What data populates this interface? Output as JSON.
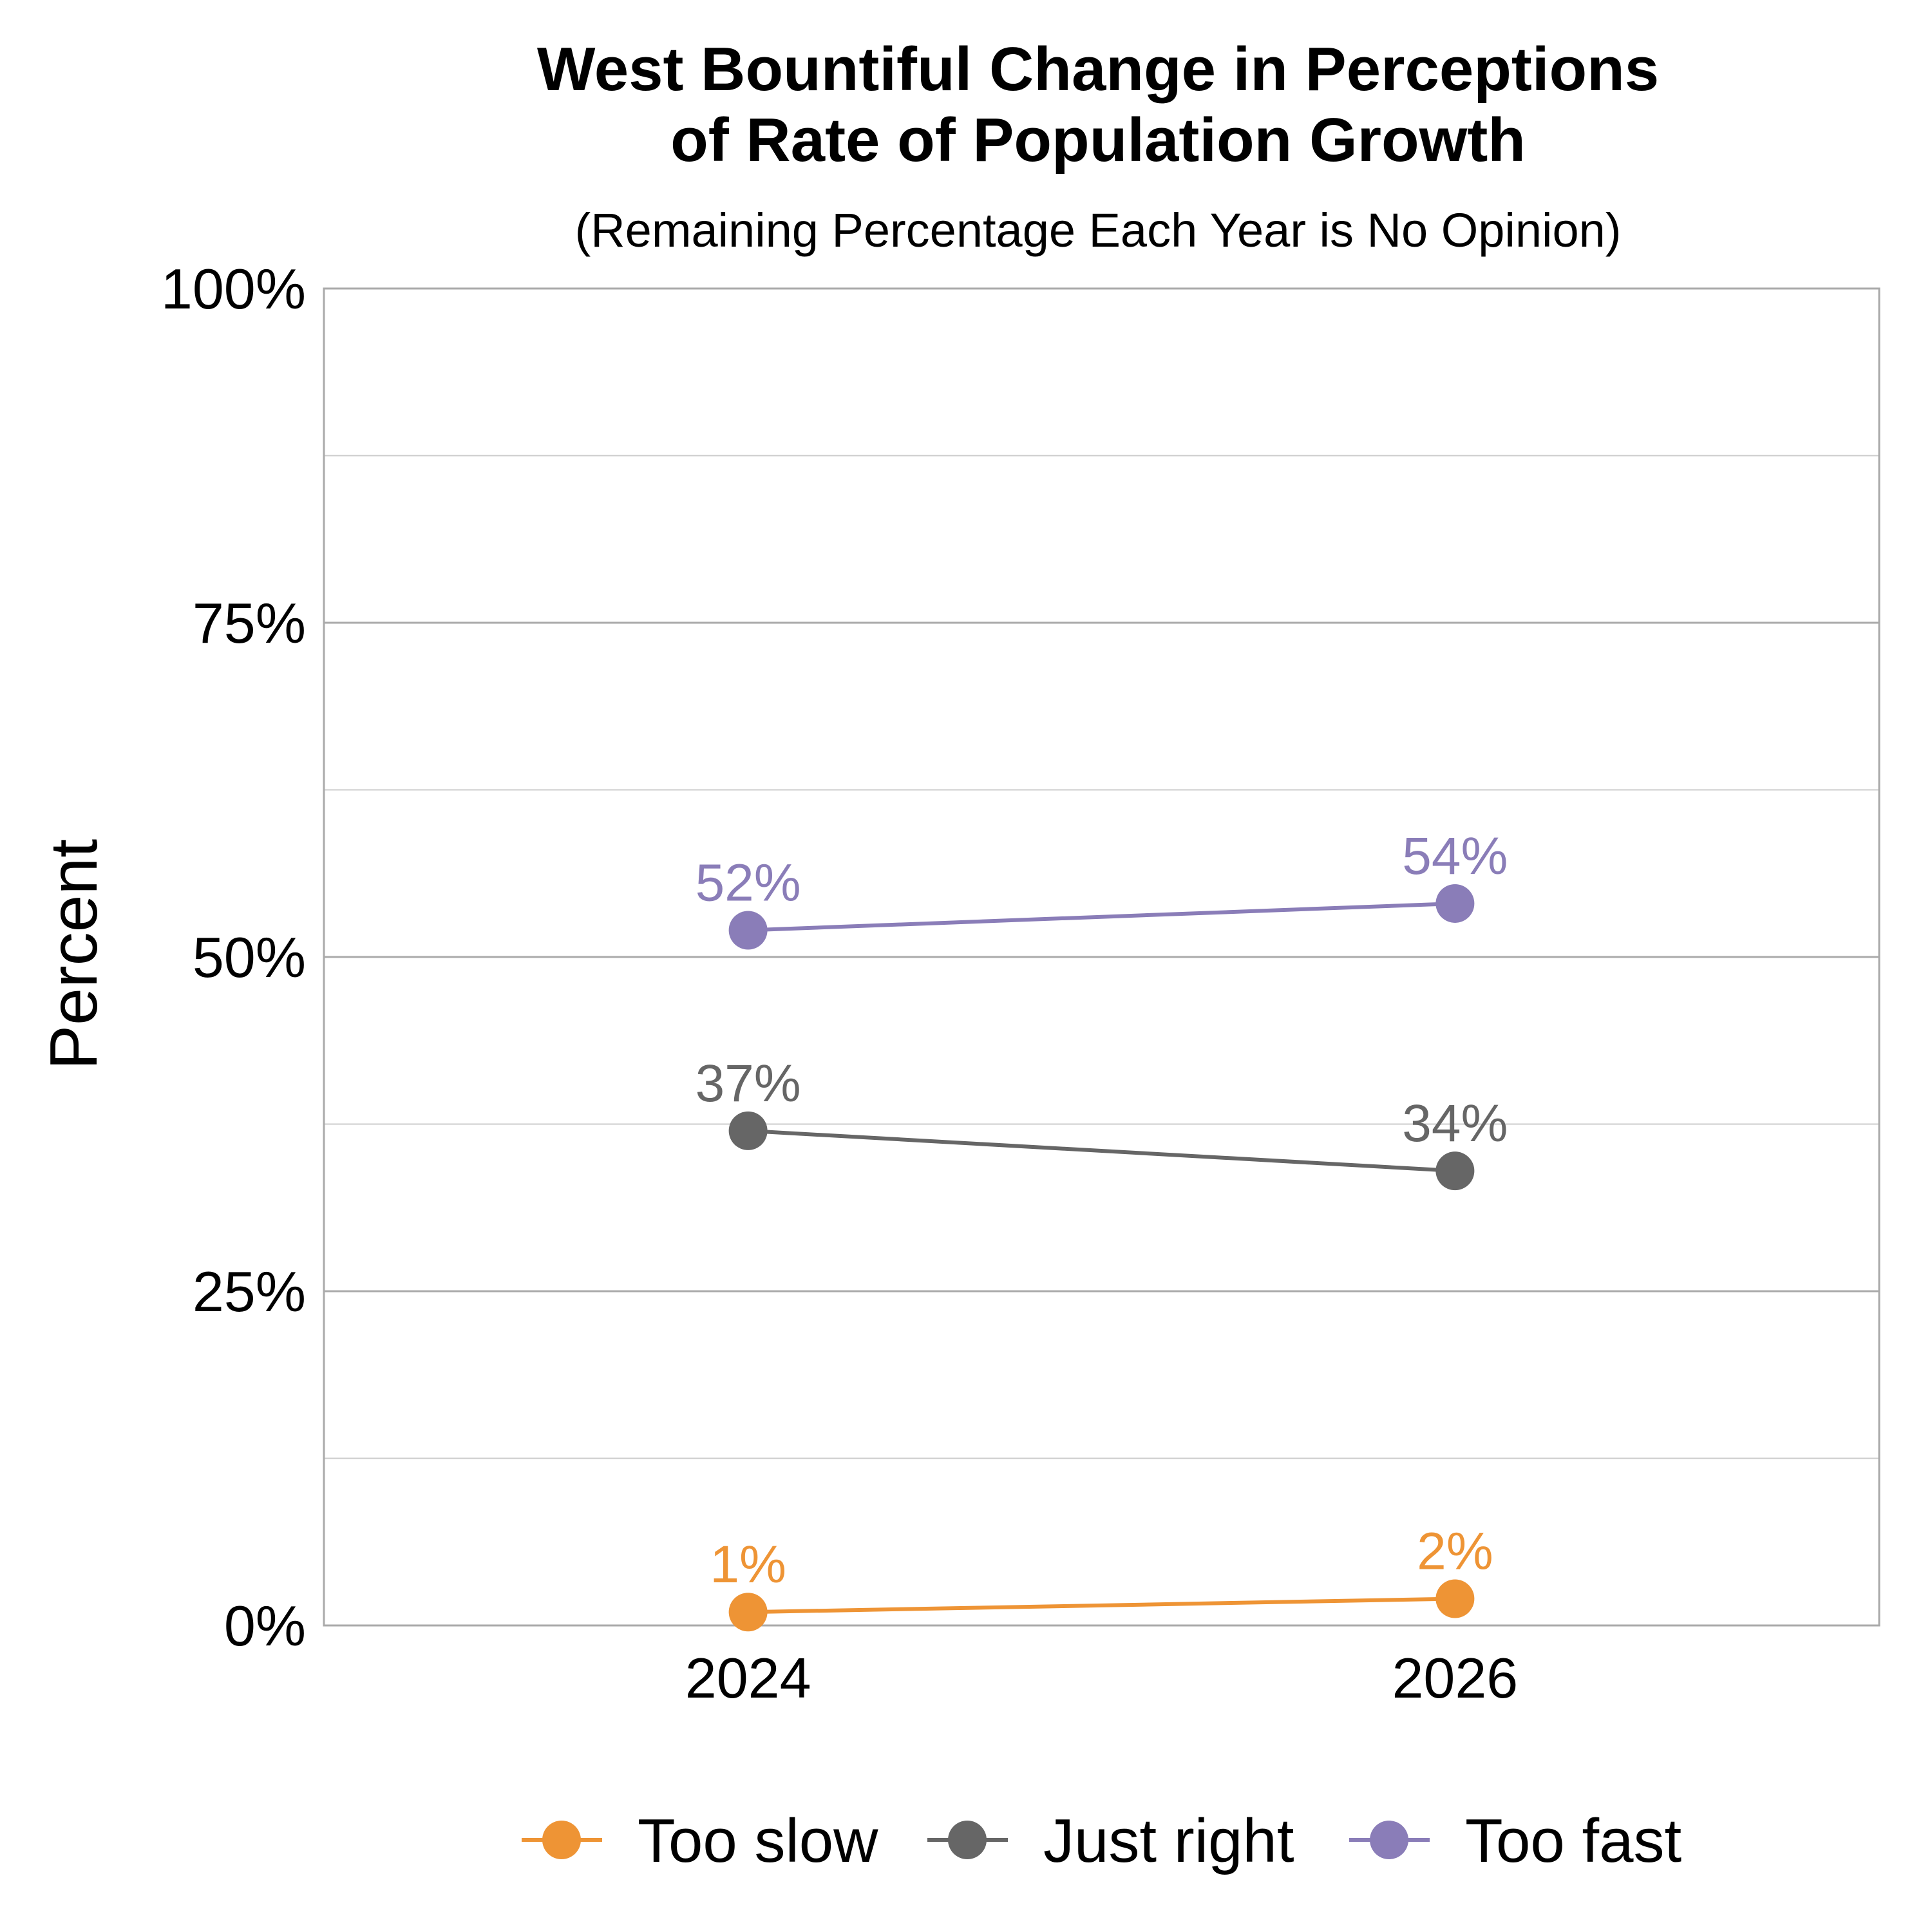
{
  "chart_data": {
    "type": "line",
    "title": [
      "West Bountiful Change in Perceptions",
      "of Rate of Population Growth"
    ],
    "subtitle": "(Remaining Percentage Each Year is No Opinion)",
    "ylabel": "Percent",
    "xlabel": "",
    "x": [
      "2024",
      "2026"
    ],
    "ylim": [
      0,
      100
    ],
    "y_ticks": [
      0,
      25,
      50,
      75,
      100
    ],
    "y_tick_labels": [
      "0%",
      "25%",
      "50%",
      "75%",
      "100%"
    ],
    "grid": true,
    "legend_position": "bottom",
    "series": [
      {
        "name": "Too slow",
        "color": "#EE9435",
        "values": [
          1,
          2
        ],
        "labels": [
          "1%",
          "2%"
        ]
      },
      {
        "name": "Just right",
        "color": "#666666",
        "values": [
          37,
          34
        ],
        "labels": [
          "37%",
          "34%"
        ]
      },
      {
        "name": "Too fast",
        "color": "#8A7DB8",
        "values": [
          52,
          54
        ],
        "labels": [
          "52%",
          "54%"
        ]
      }
    ]
  }
}
